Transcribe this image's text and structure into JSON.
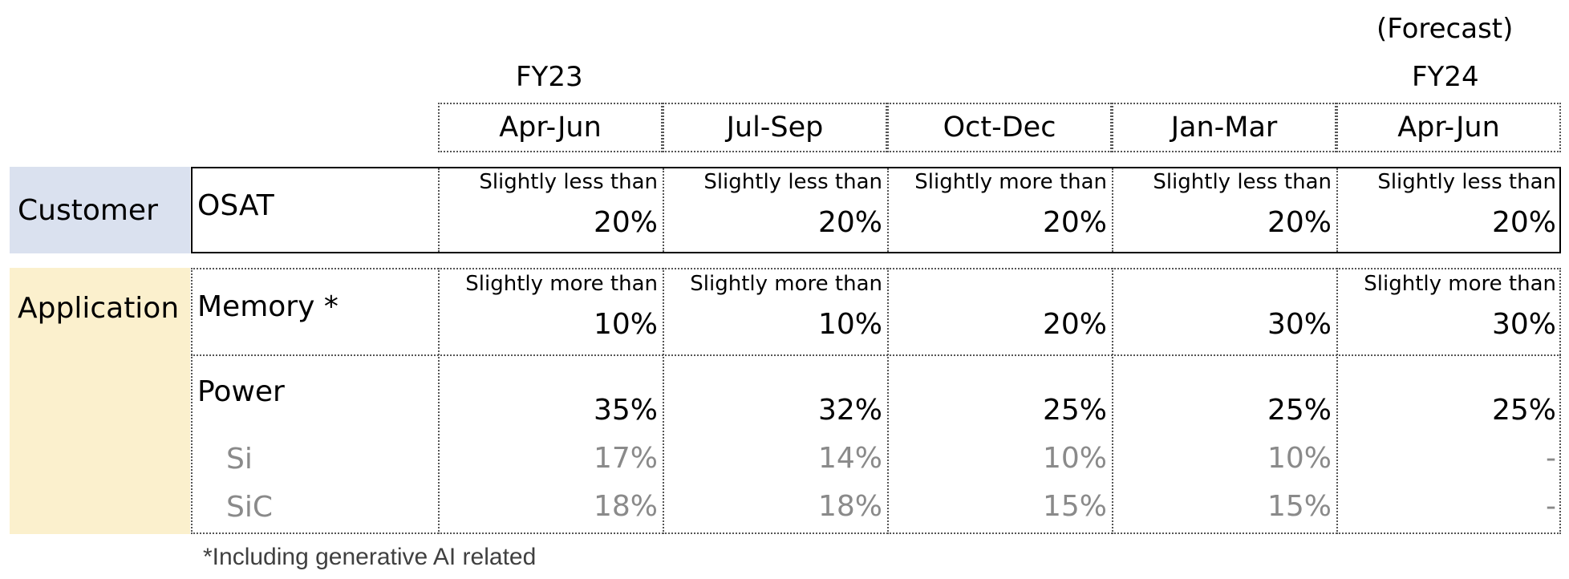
{
  "header": {
    "forecast_label": "(Forecast)",
    "fy23_label": "FY23",
    "fy24_label": "FY24",
    "columns": [
      "Apr-Jun",
      "Jul-Sep",
      "Oct-Dec",
      "Jan-Mar",
      "Apr-Jun"
    ]
  },
  "categories": {
    "customer": "Customer",
    "application": "Application",
    "customer_color": "#dae1ef",
    "application_color": "#fbf0cd"
  },
  "rows": {
    "osat": {
      "label": "OSAT",
      "qualifiers": [
        "Slightly less than",
        "Slightly less than",
        "Slightly more than",
        "Slightly less than",
        "Slightly less than"
      ],
      "values": [
        "20%",
        "20%",
        "20%",
        "20%",
        "20%"
      ]
    },
    "memory": {
      "label": "Memory *",
      "qualifiers": [
        "Slightly more than",
        "Slightly more than",
        "",
        "",
        "Slightly more than"
      ],
      "values": [
        "10%",
        "10%",
        "20%",
        "30%",
        "30%"
      ]
    },
    "power": {
      "label": "Power",
      "values": [
        "35%",
        "32%",
        "25%",
        "25%",
        "25%"
      ]
    },
    "si": {
      "label": "Si",
      "values": [
        "17%",
        "14%",
        "10%",
        "10%",
        "-"
      ]
    },
    "sic": {
      "label": "SiC",
      "values": [
        "18%",
        "18%",
        "15%",
        "15%",
        "-"
      ]
    }
  },
  "footnote": "*Including generative AI related"
}
